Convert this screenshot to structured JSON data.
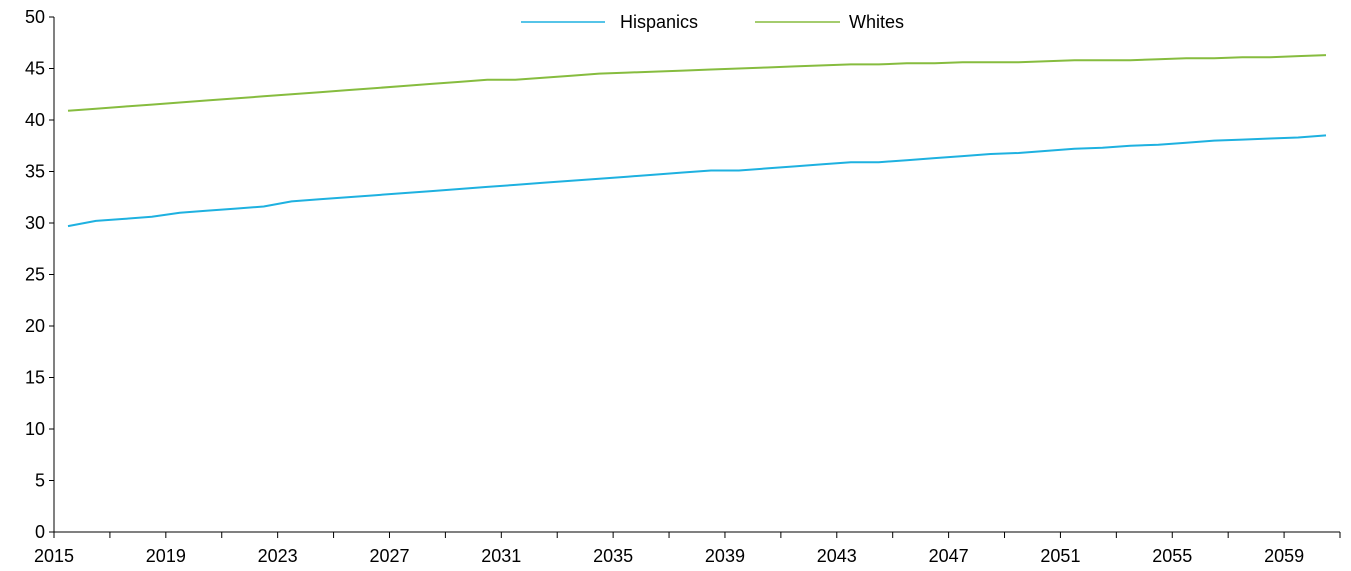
{
  "chart_data": {
    "type": "line",
    "title": "",
    "xlabel": "",
    "ylabel": "",
    "ylim": [
      0,
      50
    ],
    "yticks": [
      0,
      5,
      10,
      15,
      20,
      25,
      30,
      35,
      40,
      45,
      50
    ],
    "xlim": [
      2015,
      2060
    ],
    "xtick_labels": [
      2015,
      2019,
      2023,
      2027,
      2031,
      2035,
      2039,
      2043,
      2047,
      2051,
      2055,
      2059
    ],
    "grid": false,
    "legend": "top-center",
    "x": [
      2015,
      2016,
      2017,
      2018,
      2019,
      2020,
      2021,
      2022,
      2023,
      2024,
      2025,
      2026,
      2027,
      2028,
      2029,
      2030,
      2031,
      2032,
      2033,
      2034,
      2035,
      2036,
      2037,
      2038,
      2039,
      2040,
      2041,
      2042,
      2043,
      2044,
      2045,
      2046,
      2047,
      2048,
      2049,
      2050,
      2051,
      2052,
      2053,
      2054,
      2055,
      2056,
      2057,
      2058,
      2059,
      2060
    ],
    "series": [
      {
        "name": "Hispanics",
        "color": "#1eb1e0",
        "values": [
          29.7,
          30.2,
          30.4,
          30.6,
          31.0,
          31.2,
          31.4,
          31.6,
          32.1,
          32.3,
          32.5,
          32.7,
          32.9,
          33.1,
          33.3,
          33.5,
          33.7,
          33.9,
          34.1,
          34.3,
          34.5,
          34.7,
          34.9,
          35.1,
          35.1,
          35.3,
          35.5,
          35.7,
          35.9,
          35.9,
          36.1,
          36.3,
          36.5,
          36.7,
          36.8,
          37.0,
          37.2,
          37.3,
          37.5,
          37.6,
          37.8,
          38.0,
          38.1,
          38.2,
          38.3,
          38.5
        ]
      },
      {
        "name": "Whites",
        "color": "#86bc3f",
        "values": [
          40.9,
          41.1,
          41.3,
          41.5,
          41.7,
          41.9,
          42.1,
          42.3,
          42.5,
          42.7,
          42.9,
          43.1,
          43.3,
          43.5,
          43.7,
          43.9,
          43.9,
          44.1,
          44.3,
          44.5,
          44.6,
          44.7,
          44.8,
          44.9,
          45.0,
          45.1,
          45.2,
          45.3,
          45.4,
          45.4,
          45.5,
          45.5,
          45.6,
          45.6,
          45.6,
          45.7,
          45.8,
          45.8,
          45.8,
          45.9,
          46.0,
          46.0,
          46.1,
          46.1,
          46.2,
          46.3
        ]
      }
    ]
  }
}
